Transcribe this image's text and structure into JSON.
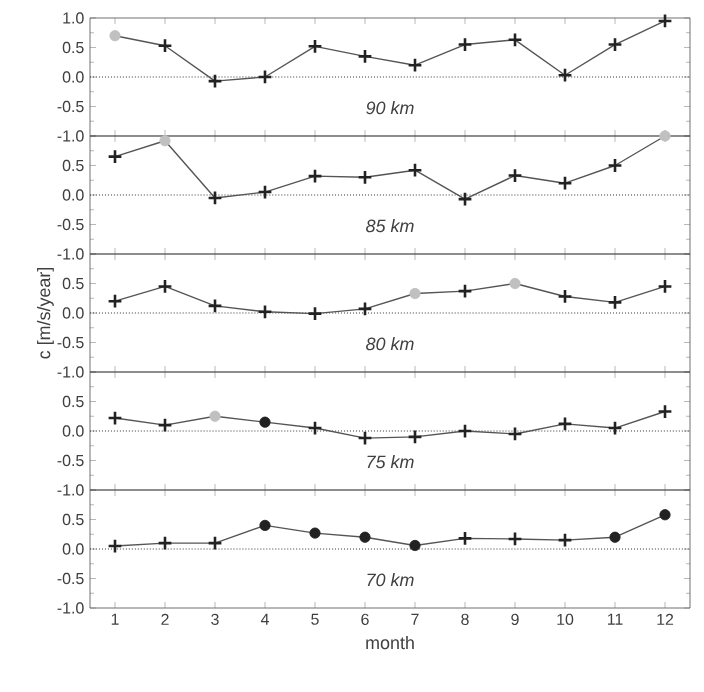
{
  "chart_data": [
    {
      "type": "line",
      "xlim": [
        0.5,
        12.5
      ],
      "ylim": [
        -1.0,
        1.0
      ],
      "xticks": [
        1,
        2,
        3,
        4,
        5,
        6,
        7,
        8,
        9,
        10,
        11,
        12
      ],
      "yticks": [
        {
          "value": -1.0,
          "label": "-1.0"
        },
        {
          "value": -0.5,
          "label": "-0.5"
        },
        {
          "value": 0.0,
          "label": "0.0"
        },
        {
          "value": 0.5,
          "label": "0.5"
        },
        {
          "value": 1.0,
          "label": "1.0"
        }
      ],
      "tick_labels": "y",
      "annotations": [
        "90 km"
      ],
      "ref_lines": [
        {
          "axis": "y",
          "value": 0,
          "line_style": "dotted",
          "color": "#333333"
        }
      ],
      "series": [
        {
          "color": "#555555",
          "marker": "none",
          "x": [
            1,
            2,
            3,
            4,
            5,
            6,
            7,
            8,
            9,
            10,
            11,
            12
          ],
          "values": [
            0.7,
            0.53,
            -0.07,
            0.0,
            0.52,
            0.35,
            0.2,
            0.55,
            0.63,
            0.03,
            0.55,
            0.95
          ]
        },
        {
          "type": "scatter",
          "color": "#222222",
          "marker": "cross",
          "x": [
            2,
            3,
            4,
            5,
            6,
            7,
            8,
            9,
            10,
            11,
            12
          ],
          "values": [
            0.53,
            -0.07,
            0.0,
            0.52,
            0.35,
            0.2,
            0.55,
            0.63,
            0.03,
            0.55,
            0.95
          ]
        },
        {
          "type": "scatter",
          "color": "#c0c0c0",
          "marker": "circle",
          "x": [
            1
          ],
          "values": [
            0.7
          ]
        }
      ]
    },
    {
      "type": "line",
      "xlim": [
        0.5,
        12.5
      ],
      "ylim": [
        -1.0,
        1.0
      ],
      "xticks": [
        1,
        2,
        3,
        4,
        5,
        6,
        7,
        8,
        9,
        10,
        11,
        12
      ],
      "yticks": [
        {
          "value": -1.0,
          "label": "-1.0"
        },
        {
          "value": -0.5,
          "label": "-0.5"
        },
        {
          "value": 0.0,
          "label": "0.0"
        },
        {
          "value": 0.5,
          "label": "0.5"
        },
        {
          "value": 1.0,
          "label": null
        }
      ],
      "tick_labels": "y",
      "annotations": [
        "85 km"
      ],
      "ref_lines": [
        {
          "axis": "y",
          "value": 0,
          "line_style": "dotted",
          "color": "#333333"
        }
      ],
      "series": [
        {
          "color": "#555555",
          "marker": "none",
          "x": [
            1,
            2,
            3,
            4,
            5,
            6,
            7,
            8,
            9,
            10,
            11,
            12
          ],
          "values": [
            0.65,
            0.92,
            -0.05,
            0.05,
            0.32,
            0.3,
            0.42,
            -0.07,
            0.33,
            0.2,
            0.5,
            1.0
          ]
        },
        {
          "type": "scatter",
          "color": "#222222",
          "marker": "cross",
          "x": [
            1,
            3,
            4,
            5,
            6,
            7,
            8,
            9,
            10,
            11
          ],
          "values": [
            0.65,
            -0.05,
            0.05,
            0.32,
            0.3,
            0.42,
            -0.07,
            0.33,
            0.2,
            0.5
          ]
        },
        {
          "type": "scatter",
          "color": "#c0c0c0",
          "marker": "circle",
          "x": [
            2,
            12
          ],
          "values": [
            0.92,
            1.0
          ]
        }
      ]
    },
    {
      "type": "line",
      "xlim": [
        0.5,
        12.5
      ],
      "ylim": [
        -1.0,
        1.0
      ],
      "xticks": [
        1,
        2,
        3,
        4,
        5,
        6,
        7,
        8,
        9,
        10,
        11,
        12
      ],
      "yticks": [
        {
          "value": -1.0,
          "label": "-1.0"
        },
        {
          "value": -0.5,
          "label": "-0.5"
        },
        {
          "value": 0.0,
          "label": "0.0"
        },
        {
          "value": 0.5,
          "label": "0.5"
        },
        {
          "value": 1.0,
          "label": null
        }
      ],
      "tick_labels": "y",
      "ylabel": "c [m/s/year]",
      "annotations": [
        "80 km"
      ],
      "ref_lines": [
        {
          "axis": "y",
          "value": 0,
          "line_style": "dotted",
          "color": "#333333"
        }
      ],
      "series": [
        {
          "color": "#555555",
          "marker": "none",
          "x": [
            1,
            2,
            3,
            4,
            5,
            6,
            7,
            8,
            9,
            10,
            11,
            12
          ],
          "values": [
            0.2,
            0.45,
            0.12,
            0.02,
            -0.01,
            0.07,
            0.33,
            0.37,
            0.5,
            0.28,
            0.18,
            0.45
          ]
        },
        {
          "type": "scatter",
          "color": "#222222",
          "marker": "cross",
          "x": [
            1,
            2,
            3,
            4,
            5,
            6,
            8,
            10,
            11,
            12
          ],
          "values": [
            0.2,
            0.45,
            0.12,
            0.02,
            -0.01,
            0.07,
            0.37,
            0.28,
            0.18,
            0.45
          ]
        },
        {
          "type": "scatter",
          "color": "#c0c0c0",
          "marker": "circle",
          "x": [
            7,
            9
          ],
          "values": [
            0.33,
            0.5
          ]
        }
      ]
    },
    {
      "type": "line",
      "xlim": [
        0.5,
        12.5
      ],
      "ylim": [
        -1.0,
        1.0
      ],
      "xticks": [
        1,
        2,
        3,
        4,
        5,
        6,
        7,
        8,
        9,
        10,
        11,
        12
      ],
      "yticks": [
        {
          "value": -1.0,
          "label": "-1.0"
        },
        {
          "value": -0.5,
          "label": "-0.5"
        },
        {
          "value": 0.0,
          "label": "0.0"
        },
        {
          "value": 0.5,
          "label": "0.5"
        },
        {
          "value": 1.0,
          "label": null
        }
      ],
      "tick_labels": "y",
      "annotations": [
        "75 km"
      ],
      "ref_lines": [
        {
          "axis": "y",
          "value": 0,
          "line_style": "dotted",
          "color": "#333333"
        }
      ],
      "series": [
        {
          "color": "#555555",
          "marker": "none",
          "x": [
            1,
            2,
            3,
            4,
            5,
            6,
            7,
            8,
            9,
            10,
            11,
            12
          ],
          "values": [
            0.22,
            0.1,
            0.25,
            0.15,
            0.05,
            -0.12,
            -0.1,
            0.0,
            -0.05,
            0.12,
            0.05,
            0.33
          ]
        },
        {
          "type": "scatter",
          "color": "#222222",
          "marker": "cross",
          "x": [
            1,
            2,
            5,
            6,
            7,
            8,
            9,
            10,
            11,
            12
          ],
          "values": [
            0.22,
            0.1,
            0.05,
            -0.12,
            -0.1,
            0.0,
            -0.05,
            0.12,
            0.05,
            0.33
          ]
        },
        {
          "type": "scatter",
          "color": "#c0c0c0",
          "marker": "circle",
          "x": [
            3
          ],
          "values": [
            0.25
          ]
        },
        {
          "type": "scatter",
          "color": "#222222",
          "marker": "circle",
          "x": [
            4
          ],
          "values": [
            0.15
          ]
        }
      ]
    },
    {
      "type": "line",
      "xlim": [
        0.5,
        12.5
      ],
      "ylim": [
        -1.0,
        1.0
      ],
      "xticks": [
        1,
        2,
        3,
        4,
        5,
        6,
        7,
        8,
        9,
        10,
        11,
        12
      ],
      "yticks": [
        {
          "value": -1.0,
          "label": "-1.0"
        },
        {
          "value": -0.5,
          "label": "-0.5"
        },
        {
          "value": 0.0,
          "label": "0.0"
        },
        {
          "value": 0.5,
          "label": "0.5"
        },
        {
          "value": 1.0,
          "label": null
        }
      ],
      "xlabel": "month",
      "annotations": [
        "70 km"
      ],
      "ref_lines": [
        {
          "axis": "y",
          "value": 0,
          "line_style": "dotted",
          "color": "#333333"
        }
      ],
      "series": [
        {
          "color": "#555555",
          "marker": "none",
          "x": [
            1,
            2,
            3,
            4,
            5,
            6,
            7,
            8,
            9,
            10,
            11,
            12
          ],
          "values": [
            0.05,
            0.1,
            0.1,
            0.4,
            0.27,
            0.2,
            0.06,
            0.18,
            0.17,
            0.15,
            0.2,
            0.58
          ]
        },
        {
          "type": "scatter",
          "color": "#222222",
          "marker": "cross",
          "x": [
            1,
            2,
            3,
            8,
            9,
            10
          ],
          "values": [
            0.05,
            0.1,
            0.1,
            0.18,
            0.17,
            0.15
          ]
        },
        {
          "type": "scatter",
          "color": "#222222",
          "marker": "circle",
          "x": [
            4,
            5,
            6,
            7,
            11,
            12
          ],
          "values": [
            0.4,
            0.27,
            0.2,
            0.06,
            0.2,
            0.58
          ]
        }
      ]
    }
  ]
}
